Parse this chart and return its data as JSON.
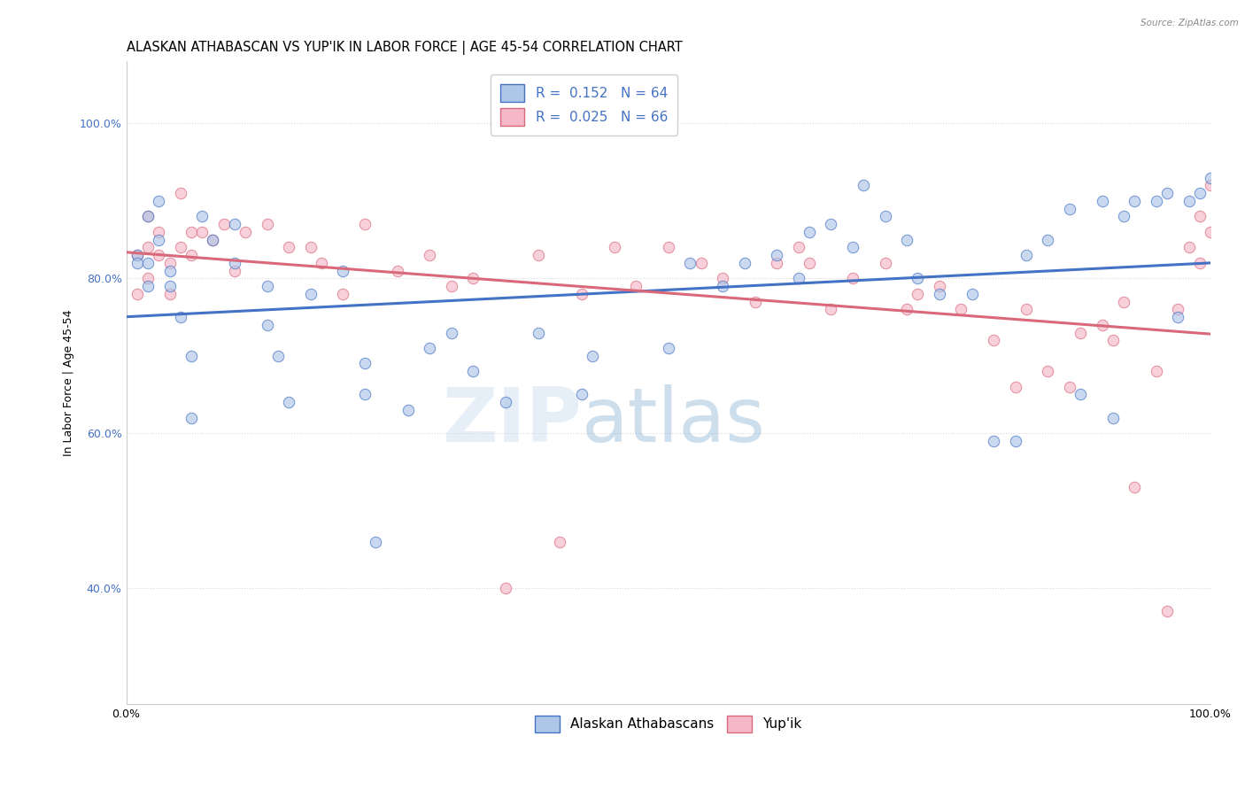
{
  "title": "ALASKAN ATHABASCAN VS YUP'IK IN LABOR FORCE | AGE 45-54 CORRELATION CHART",
  "source": "Source: ZipAtlas.com",
  "ylabel": "In Labor Force | Age 45-54",
  "yticks_labels": [
    "40.0%",
    "60.0%",
    "80.0%",
    "100.0%"
  ],
  "ytick_vals": [
    40,
    60,
    80,
    100
  ],
  "xticks_labels": [
    "0.0%",
    "100.0%"
  ],
  "xtick_vals": [
    0,
    100
  ],
  "xlim": [
    0,
    100
  ],
  "ylim": [
    25,
    108
  ],
  "blue_color": "#aec6e8",
  "pink_color": "#f5b8c8",
  "blue_line_color": "#4472c4",
  "pink_line_color": "#d9687a",
  "legend_blue_label": "Alaskan Athabascans",
  "legend_pink_label": "Yup'ik",
  "R_blue": 0.152,
  "N_blue": 64,
  "R_pink": 0.025,
  "N_pink": 66,
  "watermark_zip": "ZIP",
  "watermark_atlas": "atlas",
  "blue_x": [
    1,
    1,
    2,
    2,
    2,
    3,
    3,
    4,
    4,
    5,
    6,
    6,
    7,
    8,
    10,
    10,
    13,
    13,
    14,
    15,
    17,
    20,
    22,
    22,
    23,
    26,
    28,
    30,
    32,
    35,
    38,
    42,
    43,
    50,
    52,
    55,
    57,
    60,
    62,
    63,
    65,
    67,
    68,
    70,
    72,
    73,
    75,
    78,
    80,
    82,
    83,
    85,
    87,
    88,
    90,
    91,
    92,
    93,
    95,
    96,
    97,
    98,
    99,
    100
  ],
  "blue_y": [
    83,
    82,
    88,
    79,
    82,
    85,
    90,
    81,
    79,
    75,
    62,
    70,
    88,
    85,
    82,
    87,
    79,
    74,
    70,
    64,
    78,
    81,
    69,
    65,
    46,
    63,
    71,
    73,
    68,
    64,
    73,
    65,
    70,
    71,
    82,
    79,
    82,
    83,
    80,
    86,
    87,
    84,
    92,
    88,
    85,
    80,
    78,
    78,
    59,
    59,
    83,
    85,
    89,
    65,
    90,
    62,
    88,
    90,
    90,
    91,
    75,
    90,
    91,
    93
  ],
  "pink_x": [
    1,
    1,
    2,
    2,
    2,
    3,
    3,
    4,
    4,
    5,
    5,
    6,
    6,
    7,
    8,
    9,
    10,
    11,
    13,
    15,
    17,
    18,
    20,
    22,
    25,
    28,
    30,
    32,
    35,
    38,
    40,
    42,
    45,
    47,
    50,
    53,
    55,
    58,
    60,
    62,
    63,
    65,
    67,
    70,
    72,
    73,
    75,
    77,
    80,
    82,
    83,
    85,
    87,
    88,
    90,
    91,
    92,
    93,
    95,
    96,
    97,
    98,
    99,
    100,
    99,
    100
  ],
  "pink_y": [
    83,
    78,
    88,
    84,
    80,
    83,
    86,
    82,
    78,
    91,
    84,
    86,
    83,
    86,
    85,
    87,
    81,
    86,
    87,
    84,
    84,
    82,
    78,
    87,
    81,
    83,
    79,
    80,
    40,
    83,
    46,
    78,
    84,
    79,
    84,
    82,
    80,
    77,
    82,
    84,
    82,
    76,
    80,
    82,
    76,
    78,
    79,
    76,
    72,
    66,
    76,
    68,
    66,
    73,
    74,
    72,
    77,
    53,
    68,
    37,
    76,
    84,
    88,
    92,
    82,
    86
  ],
  "background_color": "#ffffff",
  "grid_color": "#d8d8d8",
  "title_fontsize": 10.5,
  "axis_label_fontsize": 9,
  "tick_fontsize": 9,
  "legend_fontsize": 11,
  "marker_size": 80,
  "marker_alpha": 0.65
}
